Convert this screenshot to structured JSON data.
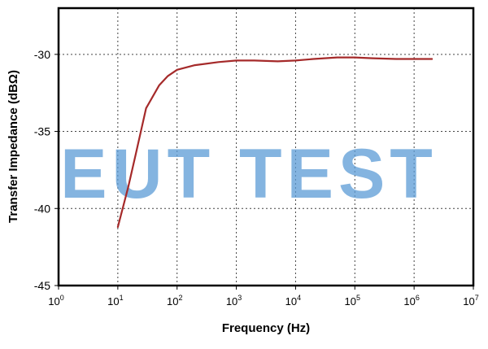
{
  "watermark": {
    "text": "EUT TEST",
    "color": "#5b9bd5"
  },
  "chart_data": {
    "type": "line",
    "title": "",
    "xlabel": "Frequency (Hz)",
    "ylabel": "Transfer Impedance (dBΩ)",
    "x_scale": "log",
    "xlim": [
      1,
      10000000
    ],
    "ylim": [
      -45,
      -27
    ],
    "x_ticks": [
      {
        "base": "10",
        "exp": "0"
      },
      {
        "base": "10",
        "exp": "1"
      },
      {
        "base": "10",
        "exp": "2"
      },
      {
        "base": "10",
        "exp": "3"
      },
      {
        "base": "10",
        "exp": "4"
      },
      {
        "base": "10",
        "exp": "5"
      },
      {
        "base": "10",
        "exp": "6"
      },
      {
        "base": "10",
        "exp": "7"
      }
    ],
    "y_ticks": [
      "-30",
      "-35",
      "-40",
      "-45"
    ],
    "y_tick_values": [
      -30,
      -35,
      -40,
      -45
    ],
    "grid": true,
    "line_color": "#a52a2a",
    "series": [
      {
        "x": [
          10,
          15,
          20,
          30,
          50,
          70,
          100,
          200,
          500,
          1000,
          2000,
          5000,
          10000,
          20000,
          50000,
          100000,
          200000,
          500000,
          1000000,
          2000000
        ],
        "y": [
          -41.2,
          -38.6,
          -36.5,
          -33.5,
          -32.0,
          -31.4,
          -31.0,
          -30.7,
          -30.5,
          -30.4,
          -30.4,
          -30.45,
          -30.4,
          -30.3,
          -30.2,
          -30.2,
          -30.25,
          -30.3,
          -30.3,
          -30.3
        ]
      }
    ]
  }
}
